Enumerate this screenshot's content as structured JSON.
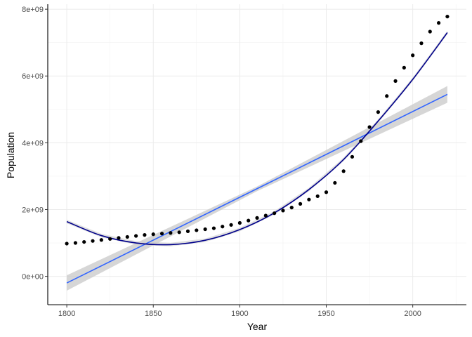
{
  "chart_data": {
    "type": "scatter",
    "title": "",
    "xlabel": "Year",
    "ylabel": "Population",
    "xlim": [
      1789,
      2031
    ],
    "ylim": [
      -850000000,
      8150000000
    ],
    "x_ticks": [
      1800,
      1850,
      1900,
      1950,
      2000
    ],
    "x_tick_labels": [
      "1800",
      "1850",
      "1900",
      "1950",
      "2000"
    ],
    "y_ticks": [
      0,
      2000000000,
      4000000000,
      6000000000,
      8000000000
    ],
    "y_tick_labels": [
      "0e+00",
      "2e+09",
      "4e+09",
      "6e+09",
      "8e+09"
    ],
    "grid": true,
    "legend": "none",
    "series": [
      {
        "kind": "points",
        "color": "#000000",
        "points": [
          [
            1800,
            980000000
          ],
          [
            1805,
            1000000000
          ],
          [
            1810,
            1030000000
          ],
          [
            1815,
            1060000000
          ],
          [
            1820,
            1090000000
          ],
          [
            1825,
            1120000000
          ],
          [
            1830,
            1150000000
          ],
          [
            1835,
            1180000000
          ],
          [
            1840,
            1210000000
          ],
          [
            1845,
            1240000000
          ],
          [
            1850,
            1260000000
          ],
          [
            1855,
            1280000000
          ],
          [
            1860,
            1300000000
          ],
          [
            1865,
            1320000000
          ],
          [
            1870,
            1350000000
          ],
          [
            1875,
            1380000000
          ],
          [
            1880,
            1410000000
          ],
          [
            1885,
            1440000000
          ],
          [
            1890,
            1490000000
          ],
          [
            1895,
            1540000000
          ],
          [
            1900,
            1600000000
          ],
          [
            1905,
            1670000000
          ],
          [
            1910,
            1750000000
          ],
          [
            1915,
            1820000000
          ],
          [
            1920,
            1890000000
          ],
          [
            1925,
            1970000000
          ],
          [
            1930,
            2060000000
          ],
          [
            1935,
            2170000000
          ],
          [
            1940,
            2300000000
          ],
          [
            1945,
            2400000000
          ],
          [
            1950,
            2520000000
          ],
          [
            1955,
            2800000000
          ],
          [
            1960,
            3150000000
          ],
          [
            1965,
            3580000000
          ],
          [
            1970,
            4050000000
          ],
          [
            1975,
            4470000000
          ],
          [
            1980,
            4920000000
          ],
          [
            1985,
            5400000000
          ],
          [
            1990,
            5850000000
          ],
          [
            1995,
            6250000000
          ],
          [
            2000,
            6620000000
          ],
          [
            2005,
            6980000000
          ],
          [
            2010,
            7330000000
          ],
          [
            2015,
            7590000000
          ],
          [
            2020,
            7780000000
          ]
        ]
      },
      {
        "kind": "linear-fit",
        "color": "#3366ff",
        "ribbon_color": "#cccccc",
        "points": [
          [
            1800,
            -200000000
          ],
          [
            2020,
            5450000000
          ]
        ],
        "ribbon": [
          [
            1800,
            -430000000,
            30000000
          ],
          [
            1910,
            2550000000,
            2690000000
          ],
          [
            2020,
            5200000000,
            5700000000
          ]
        ]
      },
      {
        "kind": "quadratic-fit",
        "color": "#00008b",
        "points": [
          [
            1800,
            1640000000
          ],
          [
            1820,
            1220000000
          ],
          [
            1840,
            1000000000
          ],
          [
            1860,
            950000000
          ],
          [
            1880,
            1080000000
          ],
          [
            1900,
            1400000000
          ],
          [
            1920,
            1900000000
          ],
          [
            1940,
            2600000000
          ],
          [
            1960,
            3500000000
          ],
          [
            1980,
            4650000000
          ],
          [
            2000,
            5900000000
          ],
          [
            2020,
            7300000000
          ]
        ]
      }
    ]
  }
}
